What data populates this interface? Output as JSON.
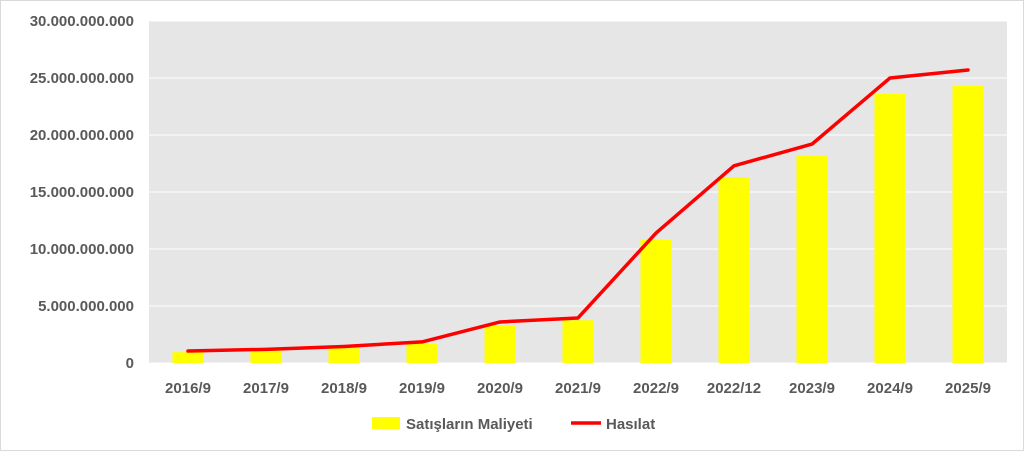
{
  "chart_data": {
    "type": "bar+line",
    "categories": [
      "2016/9",
      "2017/9",
      "2018/9",
      "2019/9",
      "2020/9",
      "2021/9",
      "2022/9",
      "2022/12",
      "2023/9",
      "2024/9",
      "2025/9"
    ],
    "series": [
      {
        "name": "Satışların Maliyeti",
        "type": "bar",
        "color": "#ffff00",
        "values": [
          950000000,
          1100000000,
          1300000000,
          1700000000,
          3300000000,
          3750000000,
          10800000000,
          16300000000,
          18200000000,
          23600000000,
          24300000000
        ]
      },
      {
        "name": "Hasılat",
        "type": "line",
        "color": "#ff0000",
        "values": [
          1050000000,
          1200000000,
          1450000000,
          1850000000,
          3600000000,
          3950000000,
          11400000000,
          17300000000,
          19200000000,
          25000000000,
          25700000000
        ]
      }
    ],
    "y_ticks": [
      "0",
      "5.000.000.000",
      "10.000.000.000",
      "15.000.000.000",
      "20.000.000.000",
      "25.000.000.000",
      "30.000.000.000"
    ],
    "ylim": [
      0,
      30000000000
    ],
    "grid": true,
    "plot_background": "#e7e6e6",
    "legend_position": "bottom"
  }
}
